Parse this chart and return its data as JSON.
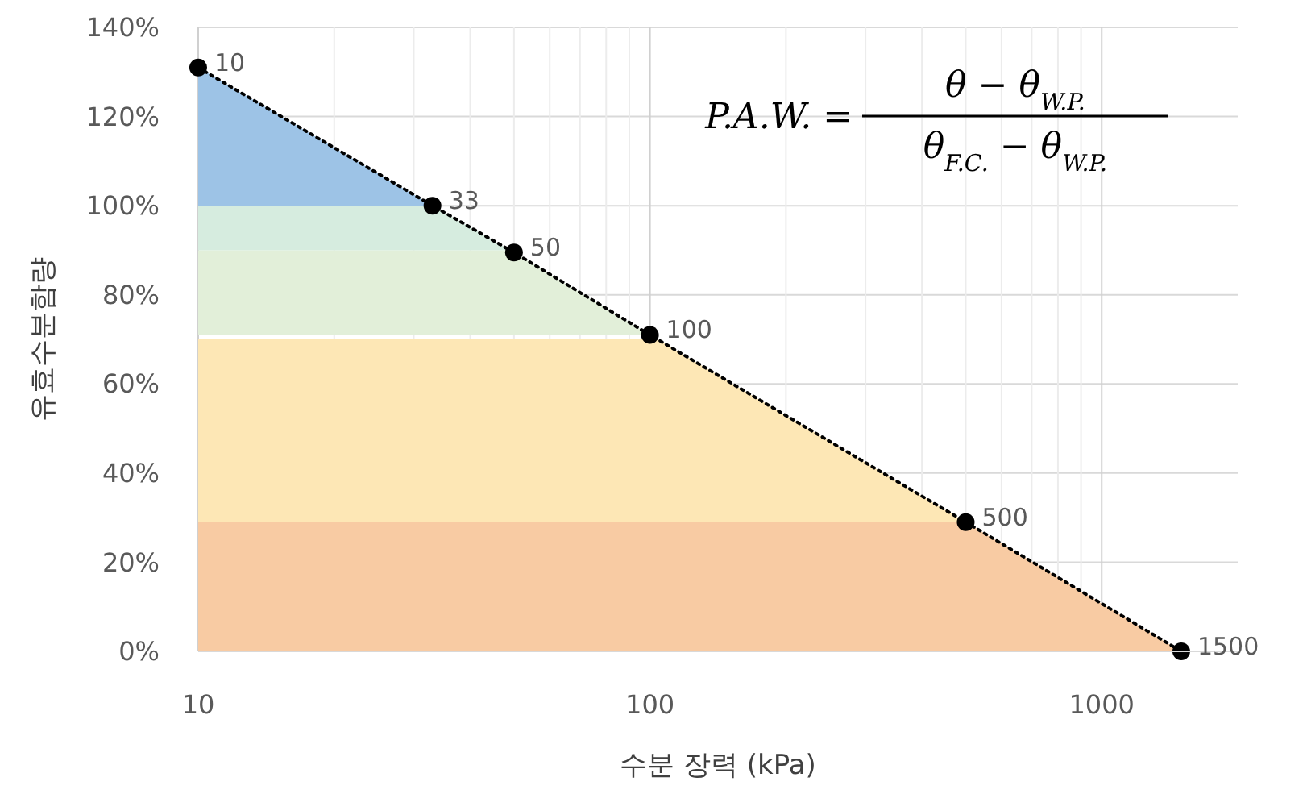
{
  "chart_data": {
    "type": "line",
    "xlabel": "수분 장력 (kPa)",
    "ylabel": "유효수분함량",
    "log": "x",
    "grid": true,
    "marker": "circle",
    "line_style": "dotted",
    "xlim": [
      10,
      2000
    ],
    "ylim": [
      0,
      140
    ],
    "xticks": [
      10,
      {
        "value": 20,
        "label": null
      },
      {
        "value": 30,
        "label": null
      },
      {
        "value": 40,
        "label": null
      },
      {
        "value": 50,
        "label": null
      },
      {
        "value": 60,
        "label": null
      },
      {
        "value": 70,
        "label": null
      },
      {
        "value": 80,
        "label": null
      },
      {
        "value": 90,
        "label": null
      },
      100,
      {
        "value": 200,
        "label": null
      },
      {
        "value": 300,
        "label": null
      },
      {
        "value": 400,
        "label": null
      },
      {
        "value": 500,
        "label": null
      },
      {
        "value": 600,
        "label": null
      },
      {
        "value": 700,
        "label": null
      },
      {
        "value": 800,
        "label": null
      },
      {
        "value": 900,
        "label": null
      },
      1000
    ],
    "yticks": [
      {
        "value": 0,
        "label": "0%"
      },
      {
        "value": 20,
        "label": "20%"
      },
      {
        "value": 40,
        "label": "40%"
      },
      {
        "value": 60,
        "label": "60%"
      },
      {
        "value": 80,
        "label": "80%"
      },
      {
        "value": 100,
        "label": "100%"
      },
      {
        "value": 120,
        "label": "120%"
      },
      {
        "value": 140,
        "label": "140%"
      }
    ],
    "series": [
      {
        "color": "#000000",
        "x": [
          10,
          33,
          50,
          100,
          500,
          1500
        ],
        "values": [
          131,
          100,
          89.5,
          71,
          29,
          0
        ]
      }
    ],
    "bands": [
      {
        "axis": "y",
        "from": 0,
        "to": 29,
        "color": "#f8cba3"
      },
      {
        "axis": "y",
        "from": 29,
        "to": 70,
        "color": "#fde7b5"
      },
      {
        "axis": "y",
        "from": 71,
        "to": 90,
        "color": "#e2efd9"
      },
      {
        "axis": "y",
        "from": 90,
        "to": 100,
        "color": "#d6ecdf"
      },
      {
        "axis": "y",
        "from": 100,
        "to": 131,
        "color": "#9dc3e6"
      }
    ],
    "annotations": [
      "P.A.W. =",
      "θ − θ$_{W.P.}$",
      "θ$_{F.C.}$ − θ$_{W.P.}$",
      {
        "text": "10",
        "x": 10,
        "y": 131
      },
      {
        "text": "33",
        "x": 33,
        "y": 100
      },
      {
        "text": "50",
        "x": 50,
        "y": 89.5
      },
      {
        "text": "100",
        "x": 100,
        "y": 71
      },
      {
        "text": "500",
        "x": 500,
        "y": 29
      },
      {
        "text": "1500",
        "x": 1500,
        "y": 0
      }
    ]
  }
}
